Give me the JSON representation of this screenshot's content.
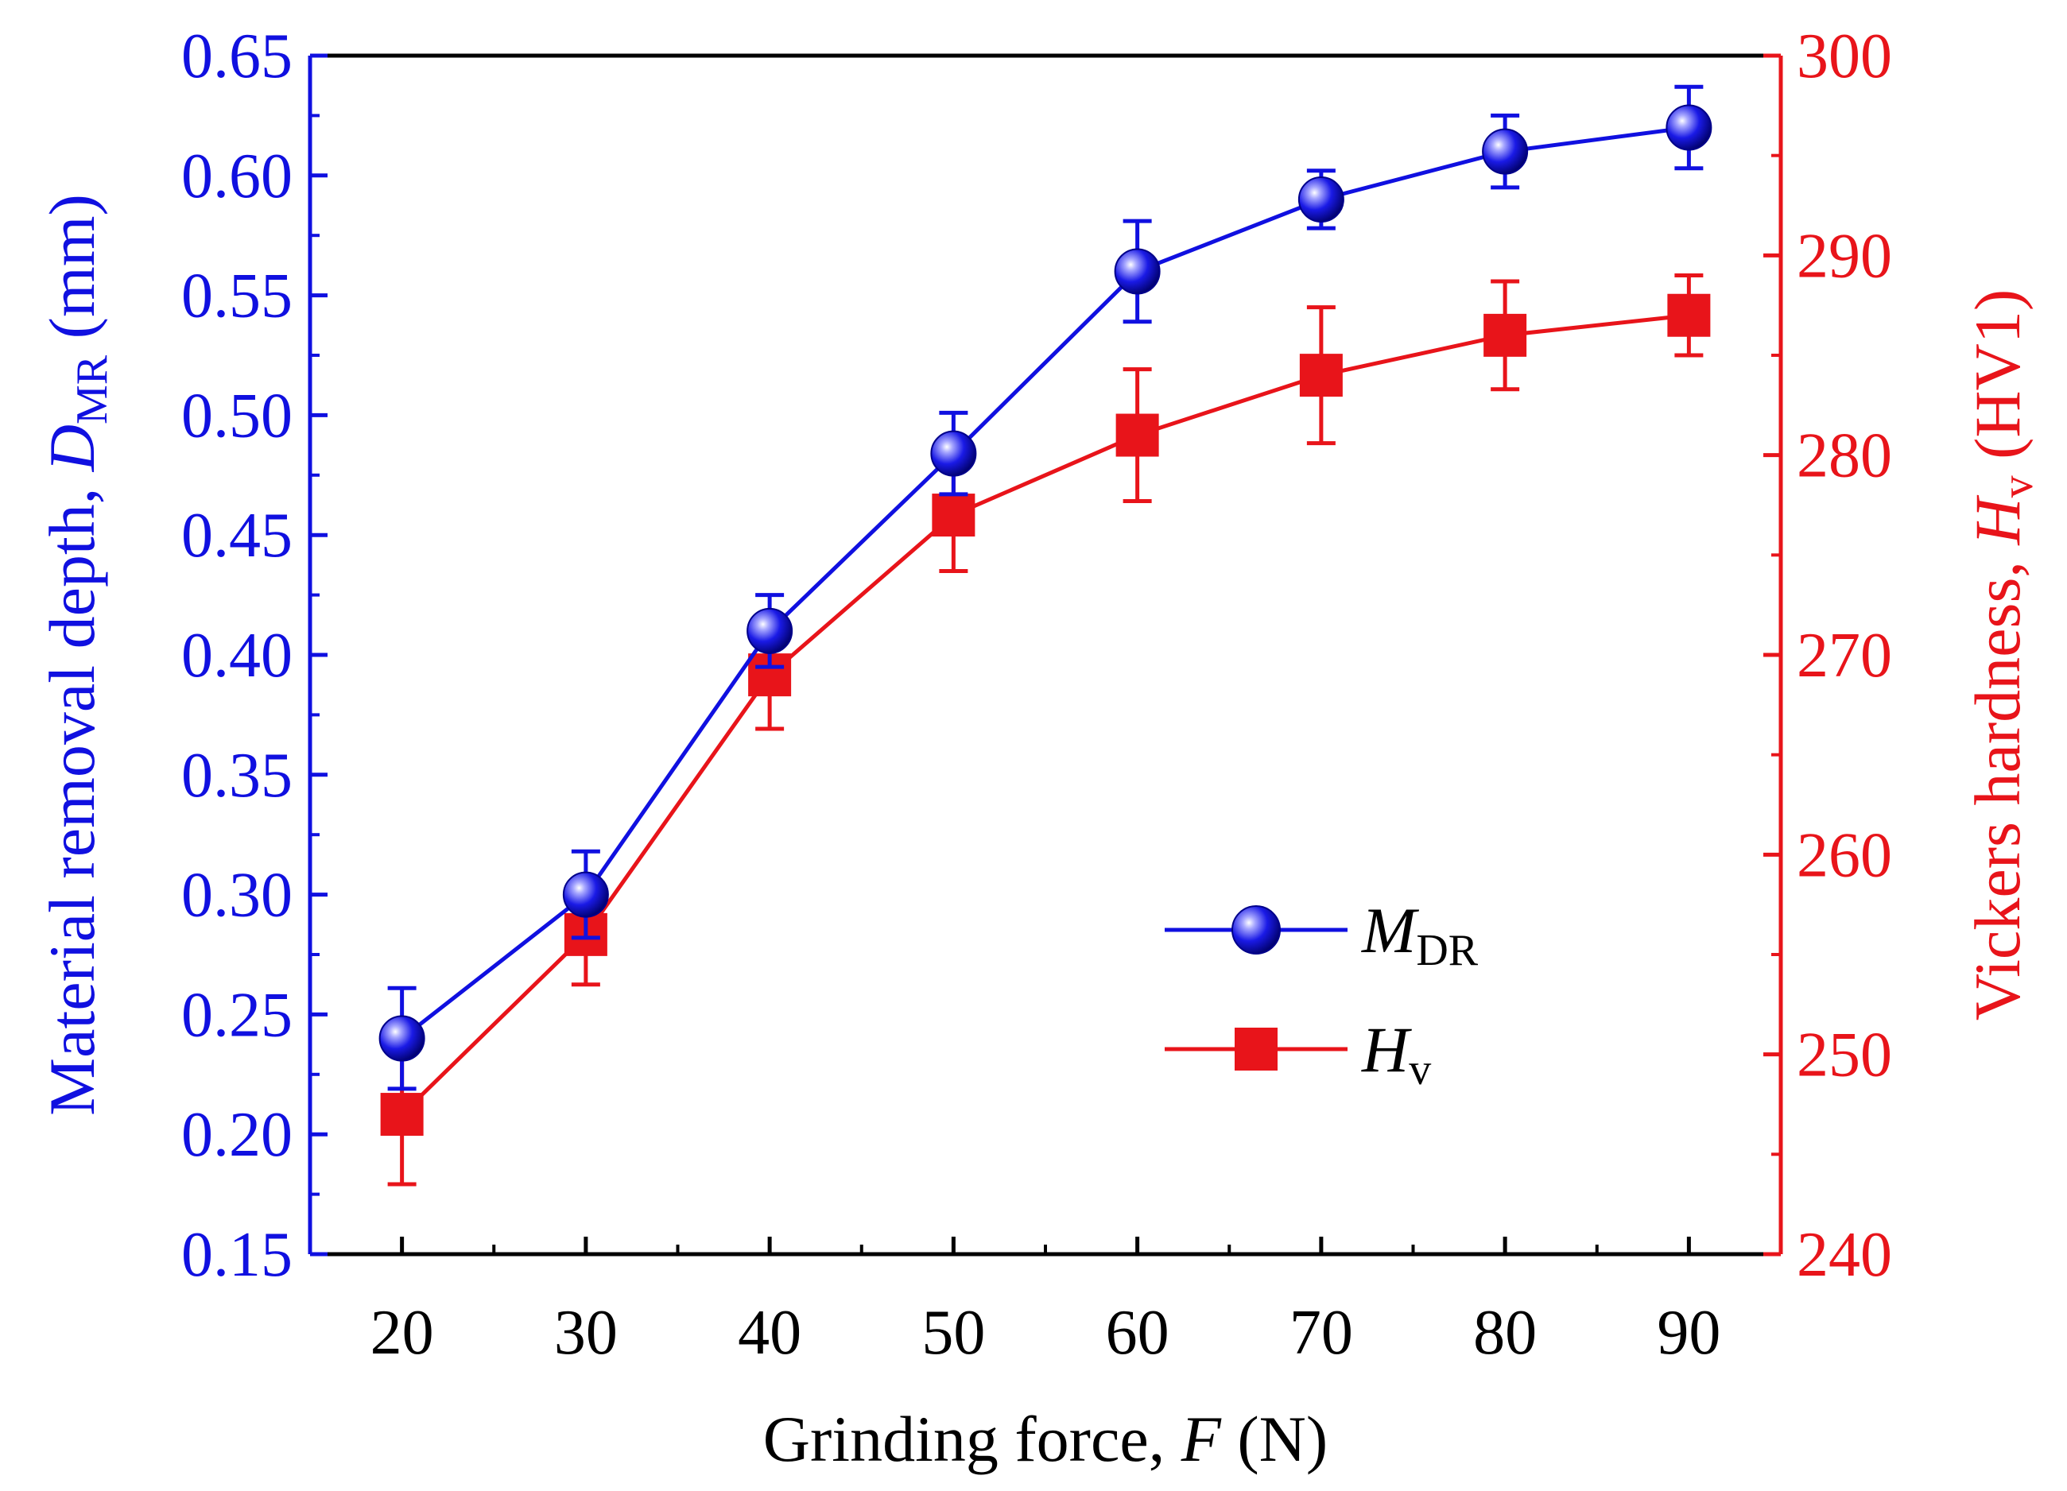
{
  "chart_data": {
    "type": "line",
    "title": "",
    "x": [
      20,
      30,
      40,
      50,
      60,
      70,
      80,
      90
    ],
    "xlim": [
      15,
      95
    ],
    "xticks": [
      20,
      30,
      40,
      50,
      60,
      70,
      80,
      90
    ],
    "xtick_labels": [
      "20",
      "30",
      "40",
      "50",
      "60",
      "70",
      "80",
      "90"
    ],
    "xlabel": {
      "prefix": "Grinding force, ",
      "var": "F",
      "suffix": " (N)"
    },
    "ylabel_left": {
      "prefix": "Material removal depth, ",
      "var": "D",
      "sub": "MR",
      "suffix": " (mm)"
    },
    "ylabel_right": {
      "prefix": "Vickers hardness, ",
      "var": "H",
      "sub": "v",
      "suffix": " (HV1)"
    },
    "ylim_left": [
      0.15,
      0.65
    ],
    "yticks_left": [
      "0.15",
      "0.20",
      "0.25",
      "0.30",
      "0.35",
      "0.40",
      "0.45",
      "0.50",
      "0.55",
      "0.60",
      "0.65"
    ],
    "ylim_right": [
      240,
      300
    ],
    "yticks_right": [
      "240",
      "250",
      "260",
      "270",
      "280",
      "290",
      "300"
    ],
    "grid": false,
    "legend_position": "lower-right",
    "series": [
      {
        "name": "M_DR",
        "legend_var": "M",
        "legend_sub": "DR",
        "axis": "left",
        "color": "#1010e0",
        "marker": "sphere",
        "values": [
          0.24,
          0.3,
          0.41,
          0.484,
          0.56,
          0.59,
          0.61,
          0.62
        ],
        "errors": [
          0.021,
          0.018,
          0.015,
          0.017,
          0.021,
          0.012,
          0.015,
          0.017
        ]
      },
      {
        "name": "H_v",
        "legend_var": "H",
        "legend_sub": "v",
        "axis": "right",
        "color": "#e8141a",
        "marker": "square",
        "values": [
          247,
          256,
          269,
          277,
          281,
          284,
          286,
          287
        ],
        "errors": [
          3.5,
          2.5,
          2.7,
          2.8,
          3.3,
          3.4,
          2.7,
          2.0
        ]
      }
    ],
    "colors": {
      "left_axis": "#1010e0",
      "right_axis": "#e8141a",
      "bottom_axis": "#000000"
    }
  }
}
